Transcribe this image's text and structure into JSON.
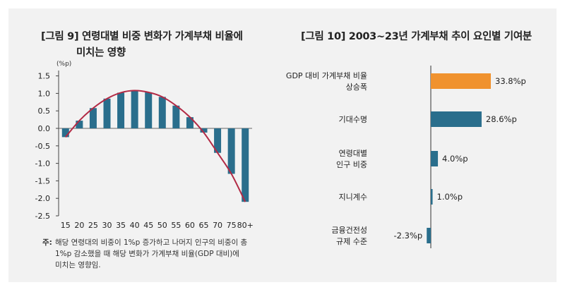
{
  "left_chart": {
    "title_line1": "[그림 9] 연령대별 비중 변화가 가계부채 비율에",
    "title_line2": "미치는 영향",
    "note_prefix": "주:",
    "note_line1": "해당 연령대의 비중이 1%p 증가하고 나머지 인구의 비중이 총",
    "note_line2": "1%p 감소했을 때 해당 변화가 가계부채 비율(GDP 대비)에",
    "note_line3": "미치는 영향임."
  },
  "right_chart": {
    "title": "[그림 10] 2003~23년 가계부채 추이 요인별 기여분"
  },
  "chart_data": [
    {
      "type": "bar",
      "title": "[그림 9] 연령대별 비중 변화가 가계부채 비율에 미치는 영향",
      "ylabel": "(%p)",
      "categories": [
        "15",
        "20",
        "25",
        "30",
        "35",
        "40",
        "45",
        "50",
        "55",
        "60",
        "65",
        "70",
        "75",
        "80+"
      ],
      "values": [
        -0.25,
        0.22,
        0.58,
        0.85,
        1.02,
        1.08,
        1.03,
        0.9,
        0.65,
        0.32,
        -0.12,
        -0.7,
        -1.3,
        -2.1
      ],
      "ylim": [
        -2.5,
        1.5
      ],
      "yticks": [
        "1.5",
        "1.0",
        "0.5",
        "0.0",
        "-0.5",
        "-1.0",
        "-1.5",
        "-2.0",
        "-2.5"
      ],
      "trendline": "fitted curve",
      "colors": {
        "bar": "#2a6e8c",
        "line": "#b22a45"
      }
    },
    {
      "type": "bar",
      "orientation": "horizontal",
      "title": "[그림 10] 2003~23년 가계부채 추이 요인별 기여분",
      "categories": [
        [
          "GDP 대비 가계부채 비율",
          "상승폭"
        ],
        [
          "기대수명"
        ],
        [
          "연령대별",
          "인구 비중"
        ],
        [
          "지니계수"
        ],
        [
          "금융건전성",
          "규제 수준"
        ]
      ],
      "values": [
        33.8,
        28.6,
        4.0,
        1.0,
        -2.3
      ],
      "labels": [
        "33.8%p",
        "28.6%p",
        "4.0%p",
        "1.0%p",
        "-2.3%p"
      ],
      "colors": [
        "#f0922e",
        "#2a6e8c",
        "#2a6e8c",
        "#2a6e8c",
        "#2a6e8c"
      ]
    }
  ]
}
